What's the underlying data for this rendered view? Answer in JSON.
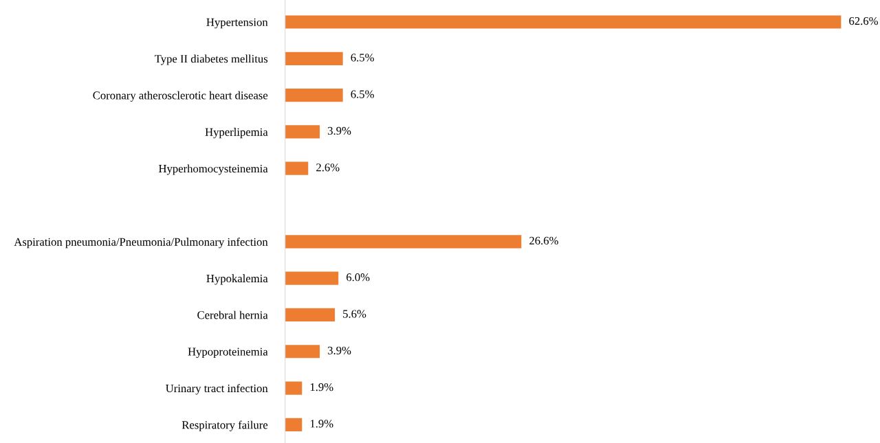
{
  "chart_data": {
    "type": "bar",
    "orientation": "horizontal",
    "categories": [
      "Hypertension",
      "Type II diabetes mellitus",
      "Coronary atherosclerotic heart disease",
      "Hyperlipemia",
      "Hyperhomocysteinemia",
      null,
      "Aspiration pneumonia/Pneumonia/Pulmonary infection",
      "Hypokalemia",
      "Cerebral hernia",
      "Hypoproteinemia",
      "Urinary tract infection",
      "Respiratory failure"
    ],
    "values": [
      62.6,
      6.5,
      6.5,
      3.9,
      2.6,
      null,
      26.6,
      6.0,
      5.6,
      3.9,
      1.9,
      1.9
    ],
    "value_labels": [
      "62.6%",
      "6.5%",
      "6.5%",
      "3.9%",
      "2.6%",
      null,
      "26.6%",
      "6.0%",
      "5.6%",
      "3.9%",
      "1.9%",
      "1.9%"
    ],
    "color": "#ed7d31",
    "grid": false,
    "legend": false
  }
}
